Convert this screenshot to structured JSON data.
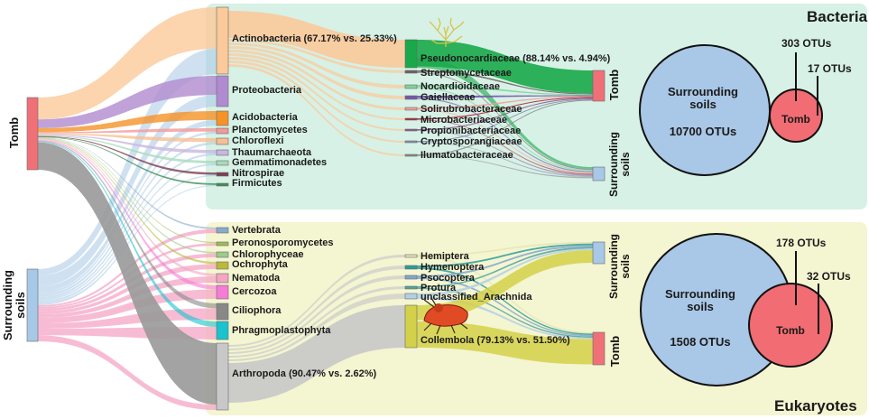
{
  "panels": {
    "bacteria_title": "Bacteria",
    "eukaryotes_title": "Eukaryotes"
  },
  "sources": {
    "tomb": "Tomb",
    "surrounding_line1": "Surrounding",
    "surrounding_line2": "soils"
  },
  "bacteria": {
    "phyla": [
      "Actinobacteria (67.17% vs. 25.33%)",
      "Proteobacteria",
      "Acidobacteria",
      "Planctomycetes",
      "Chloroflexi",
      "Thaumarchaeota",
      "Gemmatimonadetes",
      "Nitrospirae",
      "Firmicutes"
    ],
    "families": [
      "Pseudonocardiaceae (88.14% vs. 4.94%)",
      "Streptomycetaceae",
      "Nocardioidaceae",
      "Gaiellaceae",
      "Solirubrobacteraceae",
      "Microbacteriaceae",
      "Propionibacteriaceae",
      "Cryptosporangiaceae",
      "Ilumatobacteraceae"
    ],
    "right_tomb": "Tomb",
    "right_surr_line1": "Surrounding",
    "right_surr_line2": "soils",
    "venn": {
      "big_line1": "Surrounding",
      "big_line2": "soils",
      "big_count": "10700 OTUs",
      "small_label": "Tomb",
      "shared": "303 OTUs",
      "unique": "17 OTUs"
    }
  },
  "eukaryotes": {
    "phyla": [
      "Vertebrata",
      "Peronosporomycetes",
      "Chlorophyceae",
      "Ochrophyta",
      "Nematoda",
      "Cercozoa",
      "Ciliophora",
      "Phragmoplastophyta",
      "Arthropoda (90.47% vs. 2.62%)"
    ],
    "orders": [
      "Hemiptera",
      "Hymenoptera",
      "Psocoptera",
      "Protura",
      "unclassified_Arachnida",
      "Collembola (79.13% vs. 51.50%)"
    ],
    "right_surr_line1": "Surrounding",
    "right_surr_line2": "soils",
    "right_tomb": "Tomb",
    "venn": {
      "big_line1": "Surrounding",
      "big_line2": "soils",
      "big_count": "1508 OTUs",
      "small_label": "Tomb",
      "shared": "178 OTUs",
      "unique": "32 OTUs"
    }
  },
  "colors": {
    "tomb": "#f07078",
    "surrounding": "#a7c8e6",
    "actinobacteria": "#fbc99a",
    "proteobacteria": "#b08bd0",
    "acidobacteria": "#f59228",
    "pseudonocardiaceae": "#19a84a",
    "arthropoda": "#c8c8c8",
    "collembola": "#d3d04a",
    "bacteria_panel": "#d7f1e6",
    "eukaryote_panel": "#f4f5d1",
    "venn_big": "#a9c7e6",
    "venn_small": "#f16c73"
  }
}
